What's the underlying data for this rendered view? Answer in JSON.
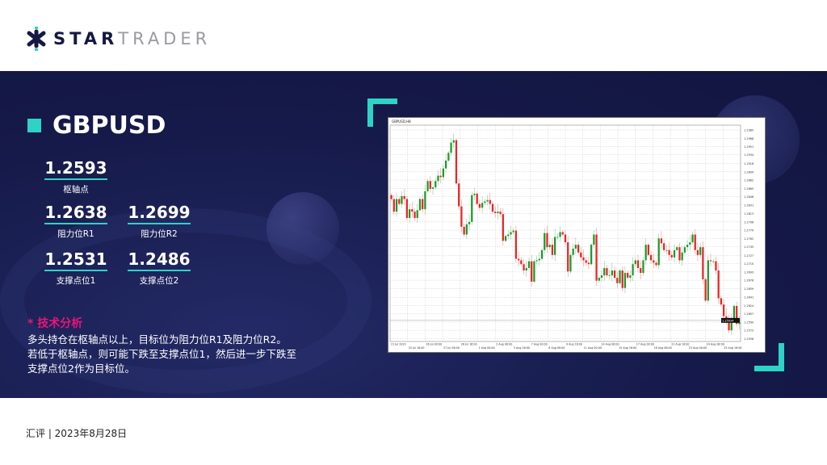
{
  "brand": {
    "bold": "STAR",
    "light": "TRADER"
  },
  "symbol": "GBPUSD",
  "levels": {
    "pivot": {
      "value": "1.2593",
      "label": "枢轴点"
    },
    "r1": {
      "value": "1.2638",
      "label": "阻力位R1"
    },
    "r2": {
      "value": "1.2699",
      "label": "阻力位R2"
    },
    "s1": {
      "value": "1.2531",
      "label": "支撑点位1"
    },
    "s2": {
      "value": "1.2486",
      "label": "支撑点位2"
    }
  },
  "analysis": {
    "heading": "* 技术分析",
    "lines": [
      "多头持仓在枢轴点以上，目标位为阻力位R1及阻力位R2。",
      "若低于枢轴点，则可能下跌至支撑点位1，然后进一步下跌至",
      "支撑点位2作为目标位。"
    ]
  },
  "footer": "汇评 | 2023年8月28日",
  "colors": {
    "navy": "#161a4a",
    "accent": "#2ed3c6",
    "highlight": "#e8157a",
    "bull": "#1a9a2a",
    "bear": "#ee2222"
  },
  "chart_data": {
    "type": "candlestick",
    "title": "GBPUSD,H8",
    "ylim": [
      1.255,
      1.2995
    ],
    "grid": true,
    "current_price": "1.25934",
    "y_ticks": [
      "1.2985",
      "1.2968",
      "1.2951",
      "1.2934",
      "1.2916",
      "1.2899",
      "1.2882",
      "1.2865",
      "1.2848",
      "1.2831",
      "1.2813",
      "1.2796",
      "1.2779",
      "1.2762",
      "1.2745",
      "1.2727",
      "1.2710",
      "1.2693",
      "1.2676",
      "1.2659",
      "1.2641",
      "1.2624",
      "1.2607",
      "1.2590",
      "1.2573",
      "1.2556"
    ],
    "x_ticks": [
      "21 Jul 2023",
      "24 Jul 16:00",
      "26 Jul 00:00",
      "27 Jul 08:00",
      "28 Jul 16:00",
      "1 Aug 00:00",
      "2 Aug 08:00",
      "3 Aug 16:00",
      "7 Aug 00:00",
      "8 Aug 08:00",
      "9 Aug 16:00",
      "11 Aug 00:00",
      "14 Aug 08:00",
      "15 Aug 16:00",
      "17 Aug 00:00",
      "18 Aug 08:00",
      "21 Aug 16:00",
      "23 Aug 00:00",
      "24 Aug 08:00",
      "25 Aug 16:00"
    ],
    "closes": [
      1.2843,
      1.2817,
      1.2843,
      1.2833,
      1.2849,
      1.2843,
      1.2804,
      1.2822,
      1.2817,
      1.2804,
      1.282,
      1.2843,
      1.2822,
      1.2859,
      1.288,
      1.2864,
      1.2867,
      1.288,
      1.2891,
      1.2888,
      1.2906,
      1.2922,
      1.2938,
      1.2959,
      1.2964,
      1.2875,
      1.2828,
      1.2786,
      1.277,
      1.2791,
      1.2796,
      1.2851,
      1.2854,
      1.2833,
      1.2825,
      1.2835,
      1.2838,
      1.2841,
      1.2833,
      1.2817,
      1.2814,
      1.2817,
      1.2812,
      1.2757,
      1.2767,
      1.277,
      1.2775,
      1.2778,
      1.272,
      1.2717,
      1.2709,
      1.2696,
      1.2701,
      1.2715,
      1.2673,
      1.2715,
      1.2717,
      1.272,
      1.2738,
      1.2773,
      1.2744,
      1.2749,
      1.2728,
      1.2765,
      1.2765,
      1.2775,
      1.277,
      1.2754,
      1.2694,
      1.2728,
      1.2741,
      1.2749,
      1.2733,
      1.2723,
      1.2717,
      1.2712,
      1.2709,
      1.2749,
      1.277,
      1.2675,
      1.2681,
      1.2686,
      1.2701,
      1.2686,
      1.2686,
      1.2696,
      1.2681,
      1.267,
      1.2696,
      1.266,
      1.2691,
      1.2681,
      1.2686,
      1.2709,
      1.2717,
      1.2701,
      1.2691,
      1.2717,
      1.2749,
      1.2728,
      1.2717,
      1.2712,
      1.2707,
      1.2762,
      1.2752,
      1.2738,
      1.2738,
      1.2728,
      1.2723,
      1.2738,
      1.2744,
      1.2717,
      1.2733,
      1.2744,
      1.2749,
      1.2754,
      1.277,
      1.2738,
      1.2728,
      1.2744,
      1.2678,
      1.2634,
      1.2717,
      1.2715,
      1.2715,
      1.2696,
      1.2639,
      1.2626,
      1.2602,
      1.2597,
      1.2573,
      1.2594,
      1.2623,
      1.2586,
      1.2589
    ]
  }
}
